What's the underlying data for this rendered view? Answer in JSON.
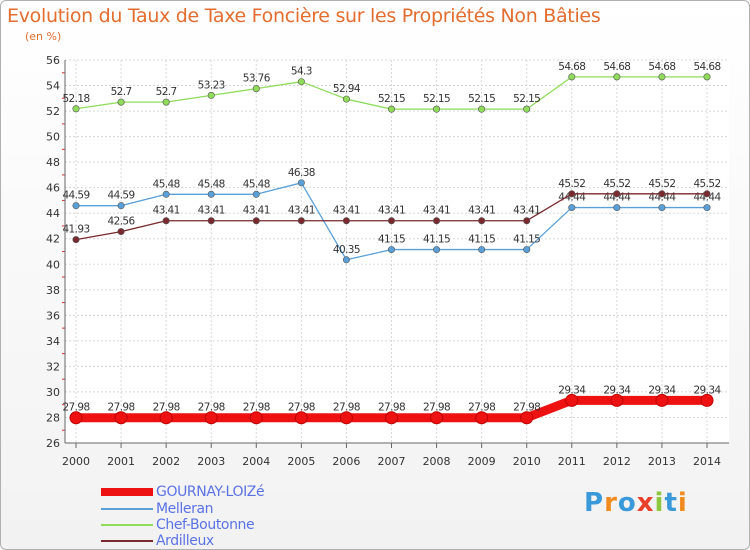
{
  "title": "Evolution du Taux de Taxe Foncière sur les Propriétés Non Bâties",
  "unit": "(en %)",
  "brand": {
    "letters": [
      "P",
      "r",
      "o",
      "x",
      "i",
      "t",
      "i"
    ],
    "colors": [
      "#3a9ad9",
      "#f08c1e",
      "#3a9ad9",
      "#e8402a",
      "#8dc63f",
      "#3a9ad9",
      "#f08c1e"
    ]
  },
  "chart_data": {
    "type": "line",
    "x": [
      "2000",
      "2001",
      "2002",
      "2003",
      "2004",
      "2005",
      "2006",
      "2007",
      "2008",
      "2009",
      "2010",
      "2011",
      "2012",
      "2013",
      "2014"
    ],
    "ylim": [
      26,
      56
    ],
    "yticks": [
      "26",
      "28",
      "30",
      "32",
      "34",
      "36",
      "38",
      "40",
      "42",
      "44",
      "46",
      "48",
      "50",
      "52",
      "54",
      "56"
    ],
    "grid": true,
    "legend_position": "bottom-left",
    "series": [
      {
        "name": "Chef-Boutonne",
        "color": "#8fdb5a",
        "values": [
          52.18,
          52.7,
          52.7,
          53.23,
          53.76,
          54.3,
          52.94,
          52.15,
          52.15,
          52.15,
          52.15,
          54.68,
          54.68,
          54.68,
          54.68
        ],
        "labels": [
          "52.18",
          "52.7",
          "52.7",
          "53.23",
          "53.76",
          "54.3",
          "52.94",
          "52.15",
          "52.15",
          "52.15",
          "52.15",
          "54.68",
          "54.68",
          "54.68",
          "54.68"
        ]
      },
      {
        "name": "Melleran",
        "color": "#5aa0d8",
        "values": [
          44.59,
          44.59,
          45.48,
          45.48,
          45.48,
          46.38,
          40.35,
          41.15,
          41.15,
          41.15,
          41.15,
          44.44,
          44.44,
          44.44,
          44.44
        ],
        "labels": [
          "44.59",
          "44.59",
          "45.48",
          "45.48",
          "45.48",
          "46.38",
          "40.35",
          "41.15",
          "41.15",
          "41.15",
          "41.15",
          "44.44",
          "44.44",
          "44.44",
          "44.44"
        ]
      },
      {
        "name": "Ardilleux",
        "color": "#7a2a2e",
        "values": [
          41.93,
          42.56,
          43.41,
          43.41,
          43.41,
          43.41,
          43.41,
          43.41,
          43.41,
          43.41,
          43.41,
          45.52,
          45.52,
          45.52,
          45.52
        ],
        "labels": [
          "41.93",
          "42.56",
          "43.41",
          "43.41",
          "43.41",
          "43.41",
          "43.41",
          "43.41",
          "43.41",
          "43.41",
          "43.41",
          "45.52",
          "45.52",
          "45.52",
          "45.52"
        ]
      },
      {
        "name": "GOURNAY-LOIZé",
        "color": "#ee1111",
        "values": [
          27.98,
          27.98,
          27.98,
          27.98,
          27.98,
          27.98,
          27.98,
          27.98,
          27.98,
          27.98,
          27.98,
          29.34,
          29.34,
          29.34,
          29.34
        ],
        "labels": [
          "27.98",
          "27.98",
          "27.98",
          "27.98",
          "27.98",
          "27.98",
          "27.98",
          "27.98",
          "27.98",
          "27.98",
          "27.98",
          "29.34",
          "29.34",
          "29.34",
          "29.34"
        ]
      }
    ]
  },
  "legend": [
    {
      "label": "GOURNAY-LOIZé",
      "color": "#ee1111"
    },
    {
      "label": "Melleran",
      "color": "#5aa0d8"
    },
    {
      "label": "Chef-Boutonne",
      "color": "#8fdb5a"
    },
    {
      "label": "Ardilleux",
      "color": "#7a2a2e"
    }
  ]
}
